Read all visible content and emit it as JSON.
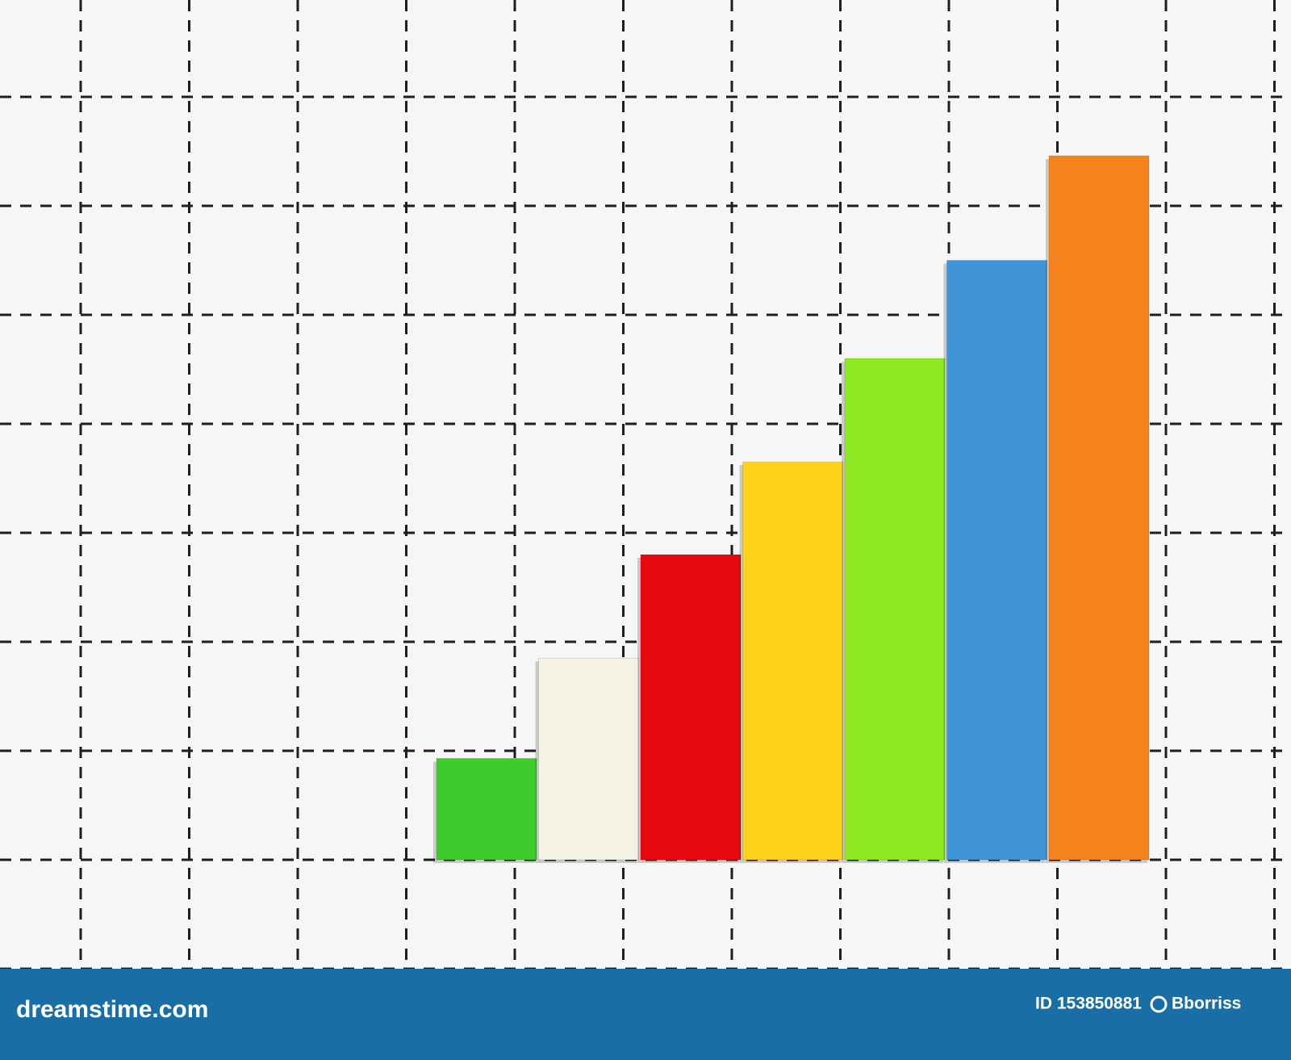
{
  "chart_data": {
    "type": "bar",
    "values": [
      0.93,
      1.85,
      2.8,
      3.65,
      4.6,
      5.5,
      6.46
    ],
    "colors": [
      "#3fcb2c",
      "#f5f3e6",
      "#e8090f",
      "#fdd21a",
      "#8ee821",
      "#3f95d8",
      "#f5841f"
    ],
    "ylim": [
      0,
      7.9
    ]
  },
  "footer": {
    "site": "dreamstime.com",
    "id": "ID 153850881",
    "author": "Bborriss"
  }
}
